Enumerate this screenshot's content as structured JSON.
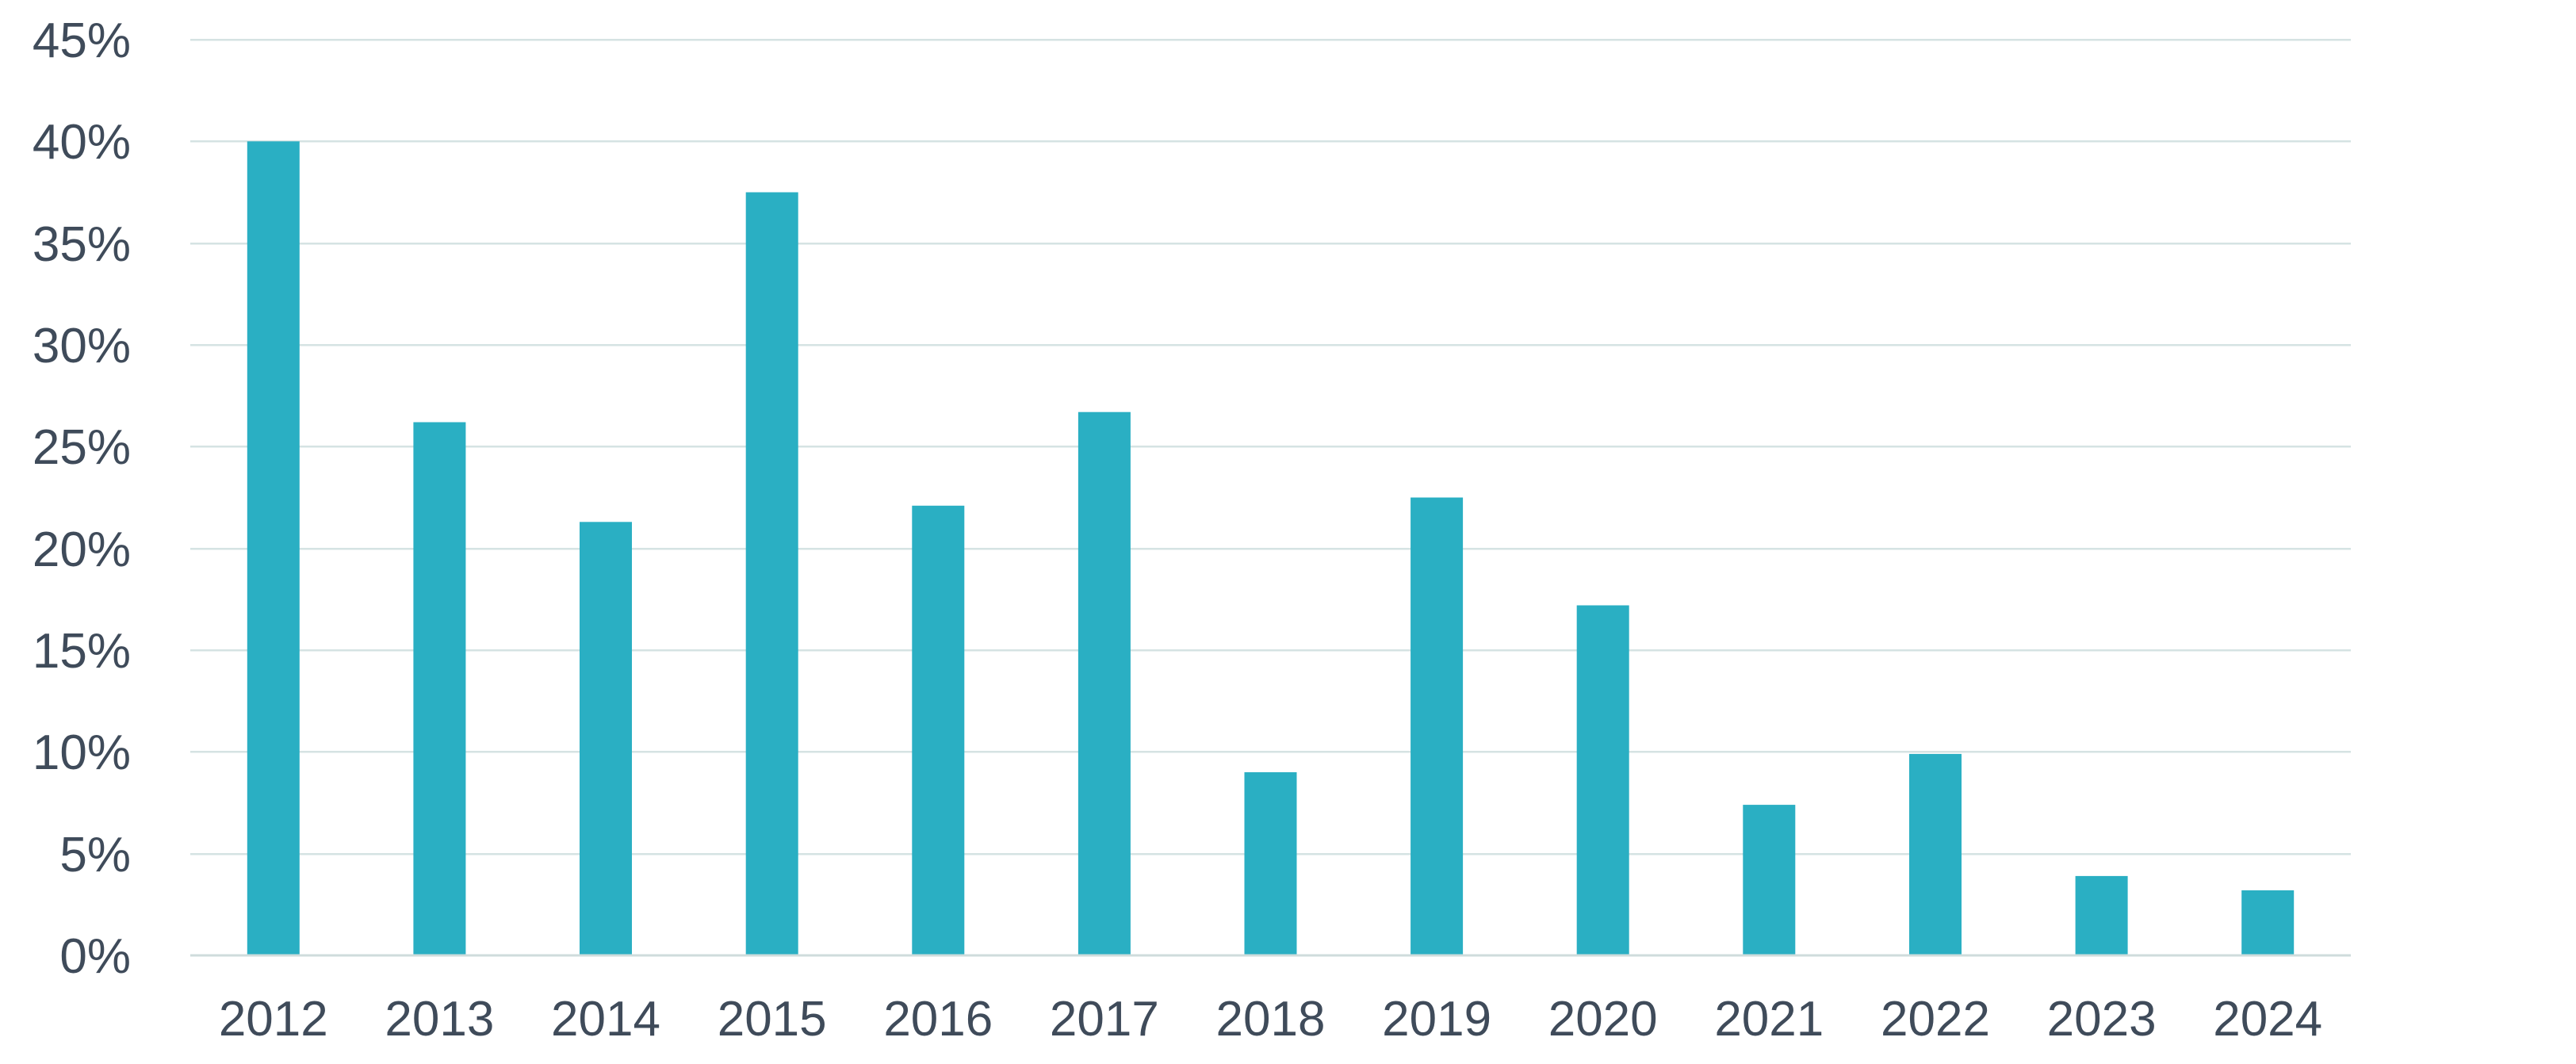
{
  "chart_data": {
    "type": "bar",
    "title": "",
    "xlabel": "",
    "ylabel": "",
    "categories": [
      "2012",
      "2013",
      "2014",
      "2015",
      "2016",
      "2017",
      "2018",
      "2019",
      "2020",
      "2021",
      "2022",
      "2023",
      "2024"
    ],
    "values": [
      40.0,
      26.2,
      21.3,
      37.5,
      22.1,
      26.7,
      9.0,
      22.5,
      17.2,
      7.4,
      9.9,
      3.9,
      3.2
    ],
    "ylim": [
      0,
      45
    ],
    "y_ticks": [
      0,
      5,
      10,
      15,
      20,
      25,
      30,
      35,
      40,
      45
    ],
    "y_tick_labels": [
      "0%",
      "5%",
      "10%",
      "15%",
      "20%",
      "25%",
      "30%",
      "35%",
      "40%",
      "45%"
    ],
    "grid": true,
    "legend": "none",
    "colors": {
      "bar": "#2aafc3",
      "grid": "#d5e3e3",
      "text": "#3f4b5a"
    }
  }
}
